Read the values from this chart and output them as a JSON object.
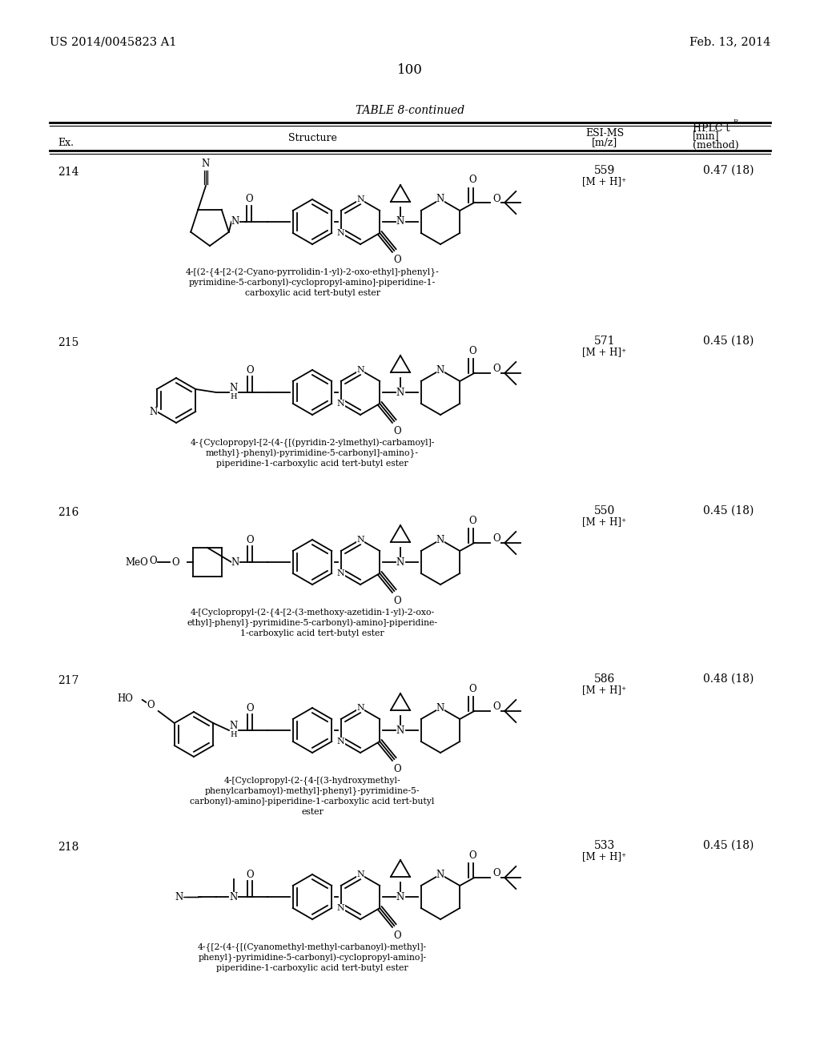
{
  "page_number": "100",
  "header_left": "US 2014/0045823 A1",
  "header_right": "Feb. 13, 2014",
  "table_title": "TABLE 8-continued",
  "bg_color": "#ffffff",
  "text_color": "#000000",
  "entries": [
    {
      "ex": "214",
      "esi_ms_val": "559",
      "esi_ms_ion": "[M + H]⁺",
      "hplc": "0.47 (18)",
      "name_lines": [
        "4-[(2-{4-[2-(2-Cyano-pyrrolidin-1-yl)-2-oxo-ethyl]-phenyl}-",
        "pyrimidine-5-carbonyl)-cyclopropyl-amino]-piperidine-1-",
        "carboxylic acid tert-butyl ester"
      ]
    },
    {
      "ex": "215",
      "esi_ms_val": "571",
      "esi_ms_ion": "[M + H]⁺",
      "hplc": "0.45 (18)",
      "name_lines": [
        "4-{Cyclopropyl-[2-(4-{[(pyridin-2-ylmethyl)-carbamoyl]-",
        "methyl}-phenyl)-pyrimidine-5-carbonyl]-amino}-",
        "piperidine-1-carboxylic acid tert-butyl ester"
      ]
    },
    {
      "ex": "216",
      "esi_ms_val": "550",
      "esi_ms_ion": "[M + H]⁺",
      "hplc": "0.45 (18)",
      "name_lines": [
        "4-[Cyclopropyl-(2-{4-[2-(3-methoxy-azetidin-1-yl)-2-oxo-",
        "ethyl]-phenyl}-pyrimidine-5-carbonyl)-amino]-piperidine-",
        "1-carboxylic acid tert-butyl ester"
      ]
    },
    {
      "ex": "217",
      "esi_ms_val": "586",
      "esi_ms_ion": "[M + H]⁺",
      "hplc": "0.48 (18)",
      "name_lines": [
        "4-[Cyclopropyl-(2-{4-[(3-hydroxymethyl-",
        "phenylcarbamoyl)-methyl]-phenyl}-pyrimidine-5-",
        "carbonyl)-amino]-piperidine-1-carboxylic acid tert-butyl",
        "ester"
      ]
    },
    {
      "ex": "218",
      "esi_ms_val": "533",
      "esi_ms_ion": "[M + H]⁺",
      "hplc": "0.45 (18)",
      "name_lines": [
        "4-{[2-(4-{[(Cyanomethyl-methyl-carbanoyl)-methyl]-",
        "phenyl}-pyrimidine-5-carbonyl)-cyclopropyl-amino]-",
        "piperidine-1-carboxylic acid tert-butyl ester"
      ]
    }
  ]
}
